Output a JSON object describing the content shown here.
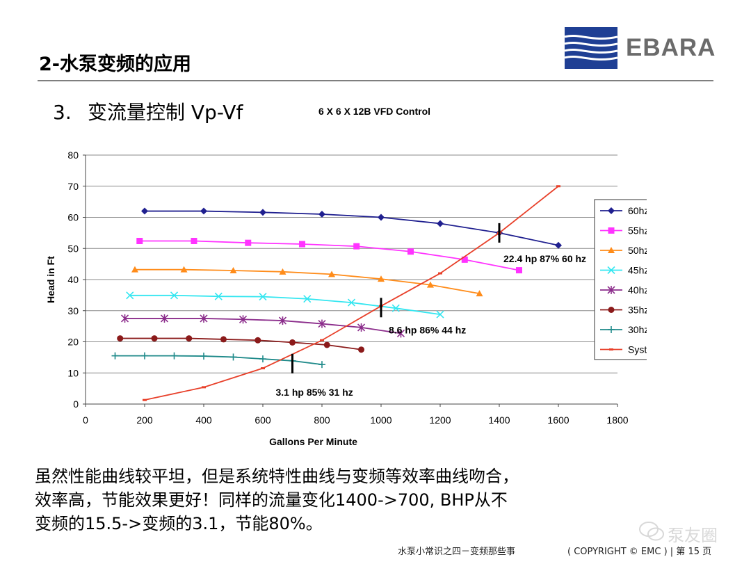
{
  "slide": {
    "title": "2-水泵变频的应用",
    "logo_text": "EBARA",
    "section_number": "3.",
    "section_title": "变流量控制 Vp-Vf",
    "body_lines": [
      "虽然性能曲线较平坦，但是系统特性曲线与变频等效率曲线吻合，",
      "效率高，节能效果更好！同样的流量变化1400->700, BHP从不",
      "变频的15.5->变频的3.1，节能80%。"
    ],
    "footer_center": "水泵小常识之四－变频那些事",
    "footer_copyright": "( COPYRIGHT © EMC )",
    "footer_page": "第 15 页",
    "watermark": "泵友圈"
  },
  "chart_data": {
    "type": "line",
    "title": "6 X 6 X 12B VFD Control",
    "xlabel": "Gallons Per Minute",
    "ylabel": "Head in Ft",
    "xlim": [
      0,
      1800
    ],
    "ylim": [
      0,
      80
    ],
    "xticks": [
      "0",
      "200",
      "400",
      "600",
      "800",
      "1000",
      "1200",
      "1400",
      "1600",
      "1800"
    ],
    "yticks": [
      "0",
      "10",
      "20",
      "30",
      "40",
      "50",
      "60",
      "70",
      "80"
    ],
    "grid": "horizontal",
    "legend_position": "right",
    "series": [
      {
        "name": "60hz",
        "color": "#1f1f8f",
        "marker": "diamond",
        "x": [
          200,
          400,
          600,
          800,
          1000,
          1200,
          1400,
          1600
        ],
        "y": [
          62,
          62,
          61.6,
          61,
          60,
          58,
          55,
          51
        ]
      },
      {
        "name": "55hz",
        "color": "#ff33ff",
        "marker": "square",
        "x": [
          183,
          367,
          550,
          733,
          917,
          1100,
          1283,
          1467
        ],
        "y": [
          52.4,
          52.4,
          51.8,
          51.4,
          50.7,
          49,
          46.4,
          43
        ]
      },
      {
        "name": "50hz",
        "color": "#ff8c1a",
        "marker": "triangle",
        "x": [
          167,
          333,
          500,
          667,
          833,
          1000,
          1167,
          1333
        ],
        "y": [
          43.2,
          43.2,
          42.9,
          42.5,
          41.7,
          40.2,
          38.3,
          35.5
        ]
      },
      {
        "name": "45hz",
        "color": "#33e6f0",
        "marker": "x",
        "x": [
          150,
          300,
          450,
          600,
          750,
          900,
          1050,
          1200
        ],
        "y": [
          34.9,
          34.9,
          34.6,
          34.5,
          33.8,
          32.6,
          30.8,
          28.8
        ]
      },
      {
        "name": "40hz",
        "color": "#8b2c8b",
        "marker": "asterisk",
        "x": [
          133,
          267,
          400,
          533,
          667,
          800,
          933,
          1067
        ],
        "y": [
          27.5,
          27.5,
          27.5,
          27.2,
          26.8,
          25.8,
          24.6,
          22.7
        ]
      },
      {
        "name": "35hz",
        "color": "#8b1a1a",
        "marker": "circle",
        "x": [
          117,
          233,
          350,
          467,
          583,
          700,
          817,
          933
        ],
        "y": [
          21.1,
          21.1,
          21.1,
          20.8,
          20.5,
          19.8,
          19,
          17.5
        ]
      },
      {
        "name": "30hz",
        "color": "#1f8a8a",
        "marker": "plus",
        "x": [
          100,
          200,
          300,
          400,
          500,
          600,
          700,
          800
        ],
        "y": [
          15.5,
          15.5,
          15.5,
          15.4,
          15.1,
          14.5,
          13.9,
          12.7
        ]
      },
      {
        "name": "System",
        "color": "#e8402a",
        "marker": "dash",
        "x": [
          200,
          400,
          600,
          800,
          1000,
          1200,
          1400,
          1600
        ],
        "y": [
          1.3,
          5.4,
          11.5,
          20.5,
          31.5,
          42,
          55,
          70
        ]
      }
    ],
    "annotations": [
      {
        "text": "22.4 hp  87%  60 hz",
        "x": 1400,
        "y": 55
      },
      {
        "text": "8.6 hp  86%  44 hz",
        "x": 1000,
        "y": 31
      },
      {
        "text": "3.1 hp  85%  31 hz",
        "x": 700,
        "y": 13
      }
    ]
  }
}
